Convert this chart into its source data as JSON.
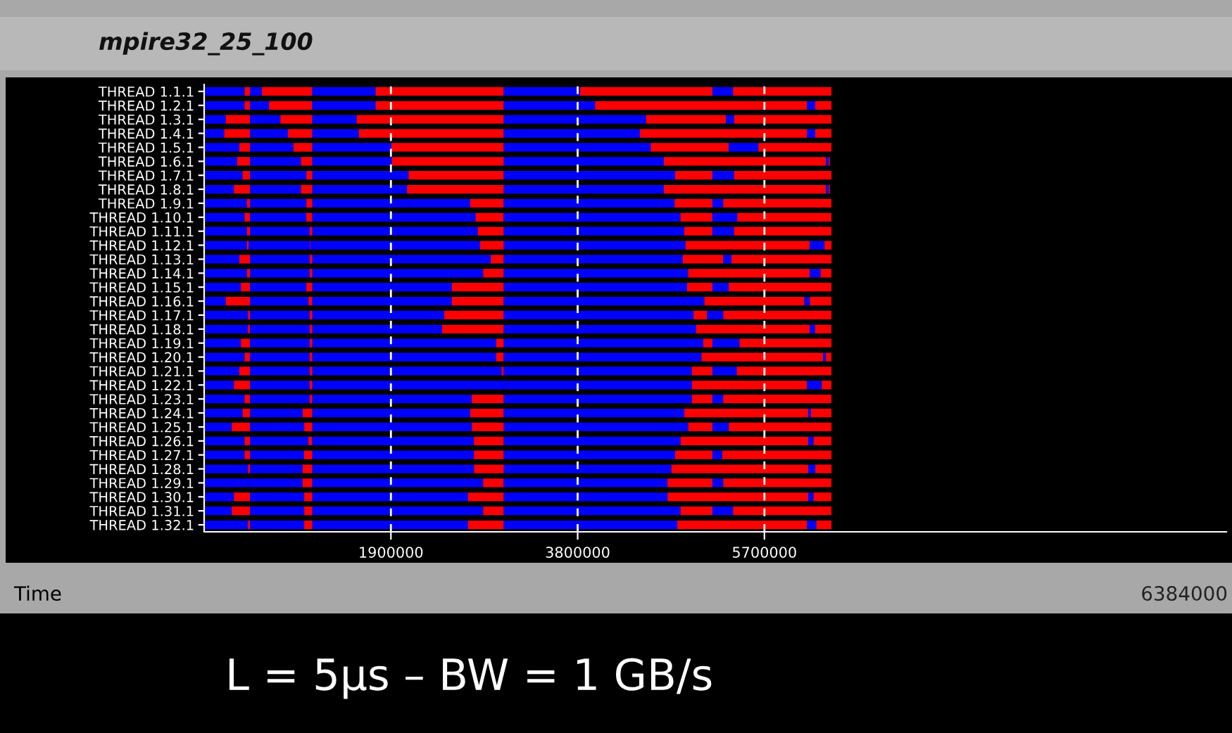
{
  "chart_data": {
    "type": "bar",
    "orientation": "horizontal",
    "stacked": true,
    "title": "mpire32_25_100",
    "xlabel": "Time",
    "annotations": [
      "6384000",
      "L = 5µs – BW = 1 GB/s"
    ],
    "categories": [
      "THREAD 1.1.1",
      "THREAD 1.2.1",
      "THREAD 1.3.1",
      "THREAD 1.4.1",
      "THREAD 1.5.1",
      "THREAD 1.6.1",
      "THREAD 1.7.1",
      "THREAD 1.8.1",
      "THREAD 1.9.1",
      "THREAD 1.10.1",
      "THREAD 1.11.1",
      "THREAD 1.12.1",
      "THREAD 1.13.1",
      "THREAD 1.14.1",
      "THREAD 1.15.1",
      "THREAD 1.16.1",
      "THREAD 1.17.1",
      "THREAD 1.18.1",
      "THREAD 1.19.1",
      "THREAD 1.20.1",
      "THREAD 1.21.1",
      "THREAD 1.22.1",
      "THREAD 1.23.1",
      "THREAD 1.24.1",
      "THREAD 1.25.1",
      "THREAD 1.26.1",
      "THREAD 1.27.1",
      "THREAD 1.28.1",
      "THREAD 1.29.1",
      "THREAD 1.30.1",
      "THREAD 1.31.1",
      "THREAD 1.32.1"
    ],
    "xlim": [
      0,
      10400000
    ],
    "xticks": [
      1900000,
      3800000,
      5700000
    ],
    "grid": "x",
    "legend": false,
    "series": [
      {
        "color": "#0000ff",
        "values": [
          412000,
          412000,
          220000,
          204000,
          358000,
          336000,
          391000,
          303000,
          435000,
          412000,
          435000,
          435000,
          358000,
          435000,
          374000,
          220000,
          446000,
          446000,
          374000,
          412000,
          358000,
          303000,
          412000,
          391000,
          281000,
          412000,
          412000,
          446000,
          0,
          303000,
          281000,
          446000
        ]
      },
      {
        "color": "#ff0000",
        "values": [
          55000,
          55000,
          248000,
          264000,
          110000,
          132000,
          77000,
          165000,
          33000,
          55000,
          33000,
          17000,
          110000,
          33000,
          94000,
          248000,
          22000,
          22000,
          94000,
          55000,
          110000,
          165000,
          55000,
          77000,
          187000,
          55000,
          55000,
          22000,
          0,
          165000,
          187000,
          22000
        ]
      },
      {
        "color": "#0000ff",
        "values": [
          121000,
          193000,
          308000,
          385000,
          440000,
          517000,
          572000,
          517000,
          572000,
          572000,
          605000,
          622000,
          605000,
          605000,
          572000,
          594000,
          605000,
          605000,
          605000,
          605000,
          605000,
          605000,
          605000,
          534000,
          550000,
          594000,
          550000,
          534000,
          1001000,
          550000,
          550000,
          550000
        ]
      },
      {
        "color": "#ff0000",
        "values": [
          512000,
          440000,
          325000,
          248000,
          193000,
          116000,
          61000,
          116000,
          61000,
          61000,
          28000,
          6000,
          28000,
          28000,
          61000,
          39000,
          28000,
          28000,
          28000,
          28000,
          28000,
          28000,
          28000,
          99000,
          83000,
          39000,
          83000,
          99000,
          99000,
          83000,
          83000,
          83000
        ]
      },
      {
        "color": "#0000ff",
        "values": [
          644000,
          644000,
          451000,
          473000,
          803000,
          809000,
          979000,
          963000,
          1606000,
          1661000,
          1683000,
          1727000,
          1815000,
          1738000,
          1419000,
          1419000,
          1342000,
          1320000,
          1870000,
          1870000,
          1925000,
          1947000,
          1623000,
          1606000,
          1623000,
          1645000,
          1645000,
          1645000,
          1738000,
          1584000,
          1738000,
          1584000
        ]
      },
      {
        "color": "#ff0000",
        "values": [
          1304000,
          1304000,
          1496000,
          1474000,
          1144000,
          1139000,
          968000,
          985000,
          341000,
          286000,
          264000,
          242000,
          132000,
          209000,
          528000,
          528000,
          605000,
          627000,
          77000,
          77000,
          22000,
          0,
          325000,
          341000,
          325000,
          303000,
          303000,
          303000,
          209000,
          363000,
          209000,
          363000
        ]
      },
      {
        "color": "#0000ff",
        "values": [
          776000,
          930000,
          1447000,
          1386000,
          1496000,
          1628000,
          1744000,
          1628000,
          1738000,
          1799000,
          1837000,
          1848000,
          1821000,
          1876000,
          1865000,
          2041000,
          1931000,
          1958000,
          2030000,
          2013000,
          1914000,
          1914000,
          1914000,
          1837000,
          1876000,
          1799000,
          1744000,
          1705000,
          1667000,
          1667000,
          1799000,
          1766000
        ]
      },
      {
        "color": "#ff0000",
        "values": [
          1348000,
          2156000,
          814000,
          1700000,
          792000,
          1650000,
          380000,
          1650000,
          385000,
          325000,
          286000,
          1265000,
          413000,
          1238000,
          259000,
          1018000,
          138000,
          1155000,
          94000,
          1238000,
          209000,
          1172000,
          209000,
          1260000,
          248000,
          1298000,
          380000,
          1392000,
          457000,
          1430000,
          325000,
          1320000
        ]
      },
      {
        "color": "#0000ff",
        "values": [
          209000,
          83000,
          83000,
          83000,
          303000,
          28000,
          220000,
          28000,
          110000,
          253000,
          220000,
          149000,
          83000,
          110000,
          165000,
          55000,
          165000,
          55000,
          275000,
          28000,
          248000,
          149000,
          110000,
          28000,
          165000,
          55000,
          99000,
          72000,
          110000,
          55000,
          209000,
          94000
        ]
      },
      {
        "color": "#ff0000",
        "values": [
          1001000,
          165000,
          990000,
          165000,
          743000,
          11000,
          990000,
          11000,
          1100000,
          957000,
          990000,
          72000,
          1018000,
          110000,
          1045000,
          220000,
          1100000,
          165000,
          935000,
          55000,
          963000,
          99000,
          1100000,
          209000,
          1045000,
          182000,
          1111000,
          165000,
          1100000,
          182000,
          1001000,
          154000
        ]
      }
    ]
  }
}
